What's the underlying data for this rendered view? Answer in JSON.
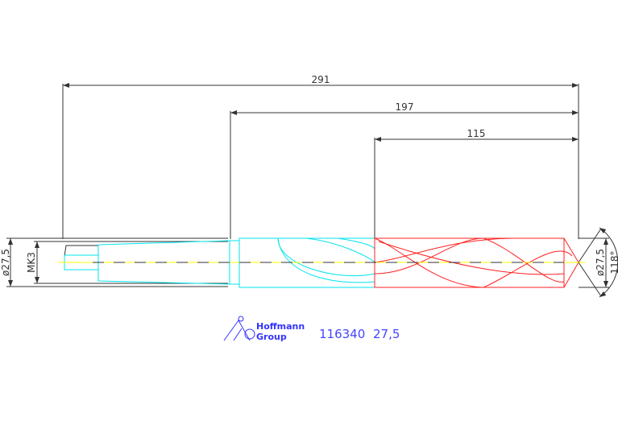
{
  "dimensions": {
    "overall_length": "291",
    "flute_plus_body": "197",
    "flute_length": "115",
    "shank_diameter": "ø27,5",
    "taper": "MK3",
    "drill_diameter": "ø27,5",
    "point_angle": "118°"
  },
  "logo": {
    "line1": "Hoffmann",
    "line2": "Group"
  },
  "part": {
    "number": "116340",
    "size": "27,5"
  },
  "colors": {
    "dimension": "#333333",
    "shank": "#00e5ee",
    "flute": "#ff2020",
    "centerline": "#ffff00",
    "brand": "#3333ff"
  }
}
